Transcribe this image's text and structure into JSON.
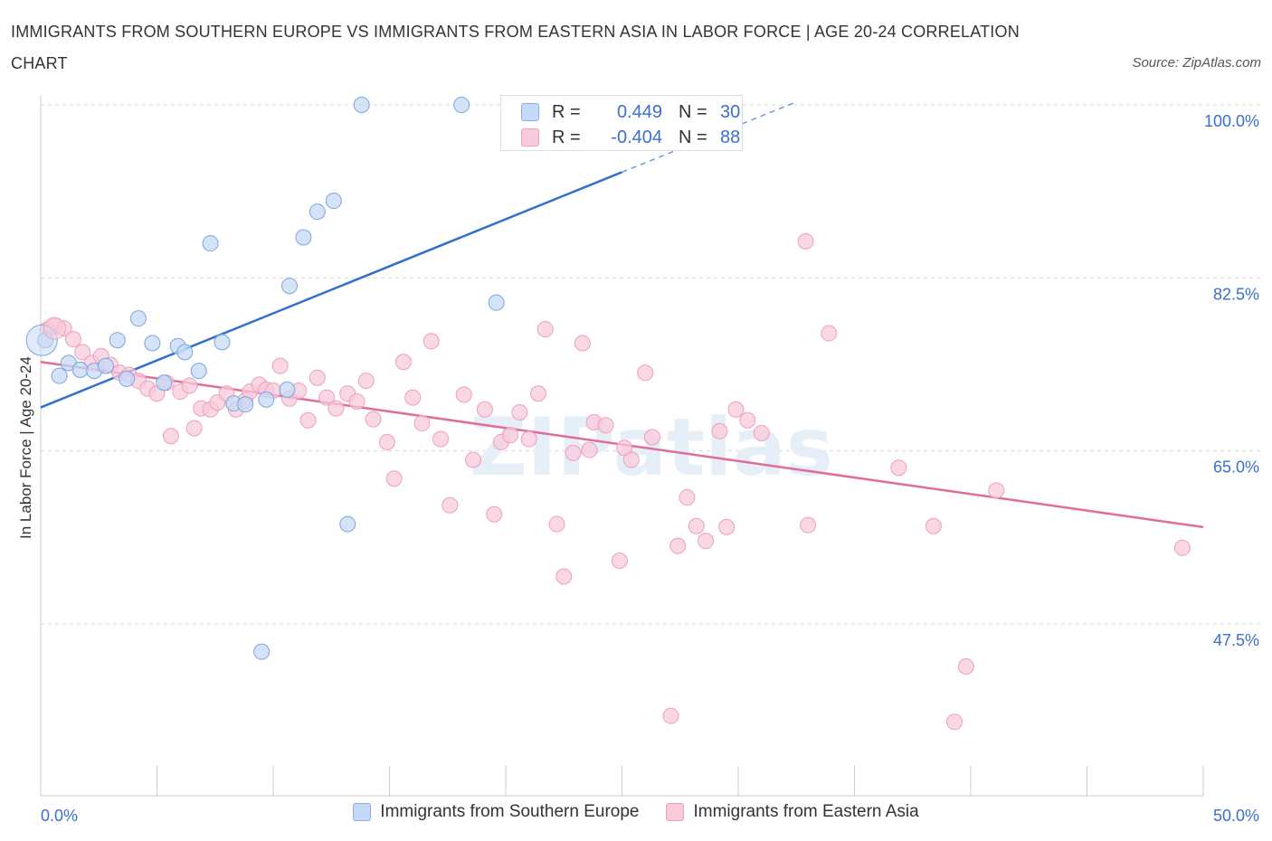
{
  "title": "IMMIGRANTS FROM SOUTHERN EUROPE VS IMMIGRANTS FROM EASTERN ASIA IN LABOR FORCE | AGE 20-24 CORRELATION CHART",
  "source": "Source: ZipAtlas.com",
  "watermark": "ZIPatlas",
  "stats": {
    "r_label": "R =",
    "n_label": "N =",
    "blue": {
      "r": "0.449",
      "n": "30"
    },
    "pink": {
      "r": "-0.404",
      "n": "88"
    }
  },
  "legend": {
    "blue_label": "Immigrants from Southern Europe",
    "pink_label": "Immigrants from Eastern Asia"
  },
  "colors": {
    "blue_fill": "#c5daf6",
    "blue_stroke": "#7aa6e0",
    "blue_line": "#2f6fcf",
    "pink_fill": "#f8cadb",
    "pink_stroke": "#ee9fbd",
    "pink_line": "#e06c9a",
    "axis_label": "#3a6fd0",
    "grid": "#d8d8d8"
  },
  "chart_data": {
    "type": "scatter",
    "title": "IMMIGRANTS FROM SOUTHERN EUROPE VS IMMIGRANTS FROM EASTERN ASIA IN LABOR FORCE | AGE 20-24 CORRELATION CHART",
    "xlabel": "",
    "ylabel": "In Labor Force | Age 20-24",
    "xlim": [
      0,
      50
    ],
    "ylim": [
      30,
      101.5
    ],
    "x_tick_labels": [
      "0.0%",
      "50.0%"
    ],
    "y_ticks": [
      47.5,
      65.0,
      82.5,
      100.0
    ],
    "y_tick_labels": [
      "47.5%",
      "65.0%",
      "82.5%",
      "100.0%"
    ],
    "grid": "horizontal dashed",
    "legend_position": "bottom",
    "series": [
      {
        "name": "Immigrants from Southern Europe",
        "color": "blue",
        "trend": {
          "x": [
            0,
            25.0
          ],
          "y": [
            69.4,
            93.2
          ],
          "dashed_to": [
            32.5,
            100.3
          ]
        },
        "points": [
          [
            0.2,
            76.2
          ],
          [
            0.8,
            72.6
          ],
          [
            1.2,
            73.9
          ],
          [
            1.7,
            73.2
          ],
          [
            2.3,
            73.1
          ],
          [
            2.8,
            73.6
          ],
          [
            3.3,
            76.2
          ],
          [
            3.7,
            72.3
          ],
          [
            4.2,
            78.4
          ],
          [
            4.8,
            75.9
          ],
          [
            5.3,
            71.9
          ],
          [
            5.9,
            75.6
          ],
          [
            6.2,
            75.0
          ],
          [
            6.8,
            73.1
          ],
          [
            7.3,
            86.0
          ],
          [
            7.8,
            76.0
          ],
          [
            8.3,
            69.8
          ],
          [
            8.8,
            69.7
          ],
          [
            9.5,
            44.7
          ],
          [
            9.7,
            70.2
          ],
          [
            10.6,
            71.2
          ],
          [
            10.7,
            81.7
          ],
          [
            11.3,
            86.6
          ],
          [
            11.9,
            89.2
          ],
          [
            12.6,
            90.3
          ],
          [
            13.2,
            57.6
          ],
          [
            13.8,
            100.0
          ],
          [
            18.1,
            100.0
          ],
          [
            19.6,
            80.0
          ],
          [
            21.0,
            100.0
          ]
        ]
      },
      {
        "name": "Immigrants from Eastern Asia",
        "color": "pink",
        "trend": {
          "x": [
            0,
            50
          ],
          "y": [
            74.0,
            57.3
          ]
        },
        "points": [
          [
            0.3,
            77.3
          ],
          [
            0.6,
            77.6
          ],
          [
            1.0,
            77.4
          ],
          [
            1.4,
            76.3
          ],
          [
            1.8,
            75.0
          ],
          [
            2.2,
            73.9
          ],
          [
            2.6,
            74.6
          ],
          [
            3.0,
            73.7
          ],
          [
            3.4,
            72.9
          ],
          [
            3.8,
            72.7
          ],
          [
            4.2,
            72.1
          ],
          [
            4.6,
            71.3
          ],
          [
            5.0,
            70.8
          ],
          [
            5.4,
            71.9
          ],
          [
            5.6,
            66.5
          ],
          [
            6.0,
            71.0
          ],
          [
            6.4,
            71.6
          ],
          [
            6.6,
            67.3
          ],
          [
            6.9,
            69.3
          ],
          [
            7.3,
            69.2
          ],
          [
            7.6,
            69.9
          ],
          [
            8.0,
            70.8
          ],
          [
            8.4,
            69.2
          ],
          [
            8.8,
            70.1
          ],
          [
            9.0,
            71.0
          ],
          [
            9.4,
            71.7
          ],
          [
            9.7,
            71.2
          ],
          [
            10.0,
            71.1
          ],
          [
            10.3,
            73.6
          ],
          [
            10.7,
            70.3
          ],
          [
            11.1,
            71.1
          ],
          [
            11.5,
            68.1
          ],
          [
            11.9,
            72.4
          ],
          [
            12.3,
            70.4
          ],
          [
            12.7,
            69.3
          ],
          [
            13.2,
            70.8
          ],
          [
            13.6,
            70.0
          ],
          [
            14.0,
            72.1
          ],
          [
            14.3,
            68.2
          ],
          [
            14.9,
            65.9
          ],
          [
            15.2,
            62.2
          ],
          [
            15.6,
            74.0
          ],
          [
            16.0,
            70.4
          ],
          [
            16.4,
            67.8
          ],
          [
            16.8,
            76.1
          ],
          [
            17.2,
            66.2
          ],
          [
            17.6,
            59.5
          ],
          [
            18.2,
            70.7
          ],
          [
            18.6,
            64.1
          ],
          [
            19.1,
            69.2
          ],
          [
            19.5,
            58.6
          ],
          [
            19.8,
            65.9
          ],
          [
            20.2,
            66.6
          ],
          [
            20.6,
            68.9
          ],
          [
            21.0,
            66.2
          ],
          [
            21.4,
            70.8
          ],
          [
            21.7,
            77.3
          ],
          [
            22.2,
            57.6
          ],
          [
            22.5,
            52.3
          ],
          [
            22.9,
            64.8
          ],
          [
            23.3,
            75.9
          ],
          [
            23.6,
            65.1
          ],
          [
            23.8,
            67.9
          ],
          [
            24.3,
            67.6
          ],
          [
            24.9,
            53.9
          ],
          [
            25.1,
            65.3
          ],
          [
            25.4,
            64.1
          ],
          [
            26.0,
            72.9
          ],
          [
            26.3,
            66.4
          ],
          [
            27.1,
            38.2
          ],
          [
            27.4,
            55.4
          ],
          [
            27.8,
            60.3
          ],
          [
            28.2,
            57.4
          ],
          [
            28.6,
            55.9
          ],
          [
            29.2,
            67.0
          ],
          [
            29.5,
            57.3
          ],
          [
            29.9,
            69.2
          ],
          [
            30.4,
            68.1
          ],
          [
            31.0,
            66.8
          ],
          [
            32.9,
            86.2
          ],
          [
            33.0,
            57.5
          ],
          [
            33.9,
            76.9
          ],
          [
            36.9,
            63.3
          ],
          [
            38.4,
            57.4
          ],
          [
            39.3,
            37.6
          ],
          [
            39.8,
            43.2
          ],
          [
            41.1,
            61.0
          ],
          [
            49.1,
            55.2
          ]
        ]
      }
    ]
  }
}
